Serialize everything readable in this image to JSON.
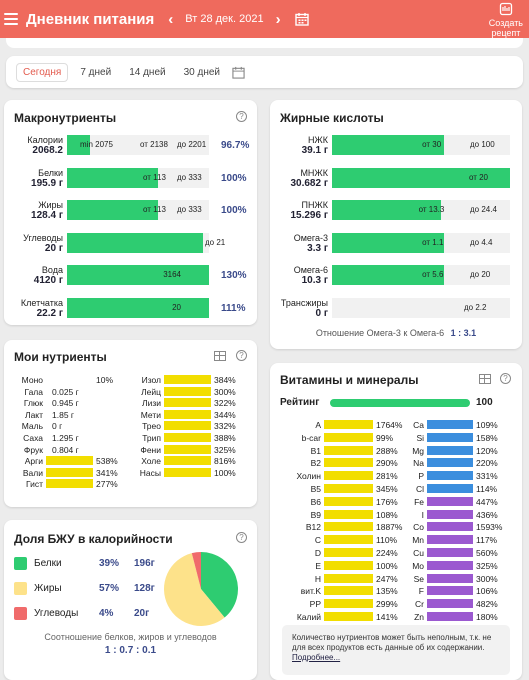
{
  "header": {
    "title": "Дневник питания",
    "prev": "‹",
    "next": "›",
    "date": "Вт 28 дек. 2021",
    "create_l1": "Создать",
    "create_l2": "рецепт"
  },
  "tabs": [
    "Сегодня",
    "7 дней",
    "14 дней",
    "30 дней"
  ],
  "macro": {
    "title": "Макронутриенты",
    "rows": [
      {
        "name": "Калории",
        "val": "2068.2",
        "fill": 0.16,
        "a": "min 2075",
        "b": "от 2138",
        "c": "до 2201",
        "pct": "96.7%"
      },
      {
        "name": "Белки",
        "val": "195.9 г",
        "fill": 0.64,
        "a": "",
        "b": "от 113",
        "c": "до 333",
        "pct": "100%"
      },
      {
        "name": "Жиры",
        "val": "128.4 г",
        "fill": 0.64,
        "a": "",
        "b": "от 113",
        "c": "до 333",
        "pct": "100%"
      },
      {
        "name": "Углеводы",
        "val": "20 г",
        "fill": 0.96,
        "a": "",
        "b": "",
        "c": "до 21",
        "pct": ""
      },
      {
        "name": "Вода",
        "val": "4120 г",
        "fill": 1,
        "a": "",
        "b": "3164",
        "c": "",
        "pct": "130%"
      },
      {
        "name": "Клетчатка",
        "val": "22.2 г",
        "fill": 1,
        "a": "",
        "b": "20",
        "c": "",
        "pct": "111%"
      }
    ]
  },
  "fat": {
    "title": "Жирные кислоты",
    "rows": [
      {
        "name": "НЖК",
        "val": "39.1 г",
        "fill": 0.63,
        "b": "от 30",
        "c": "до 100"
      },
      {
        "name": "МНЖК",
        "val": "30.682 г",
        "fill": 1,
        "b": "от 20",
        "c": ""
      },
      {
        "name": "ПНЖК",
        "val": "15.296 г",
        "fill": 0.61,
        "b": "от 13.3",
        "c": "до 24.4"
      },
      {
        "name": "Омега-3",
        "val": "3.3 г",
        "fill": 0.63,
        "b": "от 1.1",
        "c": "до 4.4"
      },
      {
        "name": "Омега-6",
        "val": "10.3 г",
        "fill": 0.63,
        "b": "от 5.6",
        "c": "до 20"
      },
      {
        "name": "Трансжиры",
        "val": "0 г",
        "fill": 0,
        "b": "",
        "c": "до 2.2"
      }
    ],
    "ratio_label": "Отношение Омега-3 к Омега-6",
    "ratio": "1 : 3.1"
  },
  "my": {
    "title": "Мои нутриенты",
    "left": [
      {
        "n": "Моно",
        "v": "10%",
        "f": 0
      },
      {
        "n": "Гала",
        "v": "0.025 г",
        "f": 0
      },
      {
        "n": "Глюк",
        "v": "0.945 г",
        "f": 0
      },
      {
        "n": "Лакт",
        "v": "1.85 г",
        "f": 0
      },
      {
        "n": "Маль",
        "v": "0 г",
        "f": 0
      },
      {
        "n": "Саха",
        "v": "1.295 г",
        "f": 0
      },
      {
        "n": "Фрук",
        "v": "0.804 г",
        "f": 0
      },
      {
        "n": "Арги",
        "v": "538%",
        "f": 1
      },
      {
        "n": "Вали",
        "v": "341%",
        "f": 1
      },
      {
        "n": "Гист",
        "v": "277%",
        "f": 1
      }
    ],
    "right": [
      {
        "n": "Изол",
        "v": "384%"
      },
      {
        "n": "Лейц",
        "v": "300%"
      },
      {
        "n": "Лизи",
        "v": "322%"
      },
      {
        "n": "Мети",
        "v": "344%"
      },
      {
        "n": "Трео",
        "v": "332%"
      },
      {
        "n": "Трип",
        "v": "388%"
      },
      {
        "n": "Фени",
        "v": "325%"
      },
      {
        "n": "Холе",
        "v": "816%"
      },
      {
        "n": "Насы",
        "v": "100%"
      }
    ]
  },
  "bju": {
    "title": "Доля БЖУ в калорийности",
    "rows": [
      {
        "n": "Белки",
        "p": "39%",
        "g": "196г",
        "color": "#2ecc71"
      },
      {
        "n": "Жиры",
        "p": "57%",
        "g": "128г",
        "color": "#fde28a"
      },
      {
        "n": "Углеводы",
        "p": "4%",
        "g": "20г",
        "color": "#f06b6b"
      }
    ],
    "shares": [
      0.39,
      0.57,
      0.04
    ],
    "note": "Соотношение белков, жиров и углеводов",
    "ratio": "1 : 0.7 : 0.1"
  },
  "vit": {
    "title": "Витамины и минералы",
    "rating_label": "Рейтинг",
    "rating": "100",
    "rating_fill": 1,
    "left": [
      {
        "n": "A",
        "v": "1764%"
      },
      {
        "n": "b-car",
        "v": "99%"
      },
      {
        "n": "B1",
        "v": "288%"
      },
      {
        "n": "B2",
        "v": "290%"
      },
      {
        "n": "Холин",
        "v": "281%"
      },
      {
        "n": "B5",
        "v": "345%"
      },
      {
        "n": "B6",
        "v": "176%"
      },
      {
        "n": "B9",
        "v": "108%"
      },
      {
        "n": "B12",
        "v": "1887%"
      },
      {
        "n": "C",
        "v": "110%"
      },
      {
        "n": "D",
        "v": "224%"
      },
      {
        "n": "E",
        "v": "100%"
      },
      {
        "n": "H",
        "v": "247%"
      },
      {
        "n": "вит.K",
        "v": "135%"
      },
      {
        "n": "PP",
        "v": "299%"
      },
      {
        "n": "Калий",
        "v": "141%"
      }
    ],
    "right": [
      {
        "n": "Ca",
        "v": "109%"
      },
      {
        "n": "Si",
        "v": "158%"
      },
      {
        "n": "Mg",
        "v": "120%"
      },
      {
        "n": "Na",
        "v": "220%"
      },
      {
        "n": "P",
        "v": "331%"
      },
      {
        "n": "Cl",
        "v": "114%"
      },
      {
        "n": "Fe",
        "v": "447%"
      },
      {
        "n": "I",
        "v": "436%"
      },
      {
        "n": "Co",
        "v": "1593%"
      },
      {
        "n": "Mn",
        "v": "117%"
      },
      {
        "n": "Cu",
        "v": "560%"
      },
      {
        "n": "Mo",
        "v": "325%"
      },
      {
        "n": "Se",
        "v": "300%"
      },
      {
        "n": "F",
        "v": "106%"
      },
      {
        "n": "Cr",
        "v": "482%"
      },
      {
        "n": "Zn",
        "v": "180%"
      }
    ],
    "note": "Количество нутриентов может быть неполным, т.к. не для всех продуктов есть данные об их содержании.",
    "more": "Подробнее..."
  },
  "colors": {
    "accent": "#ef6a5d",
    "green": "#2ecc71",
    "yellow": "#f2de00",
    "blue": "#3b8ede",
    "purple": "#9b59d0"
  }
}
